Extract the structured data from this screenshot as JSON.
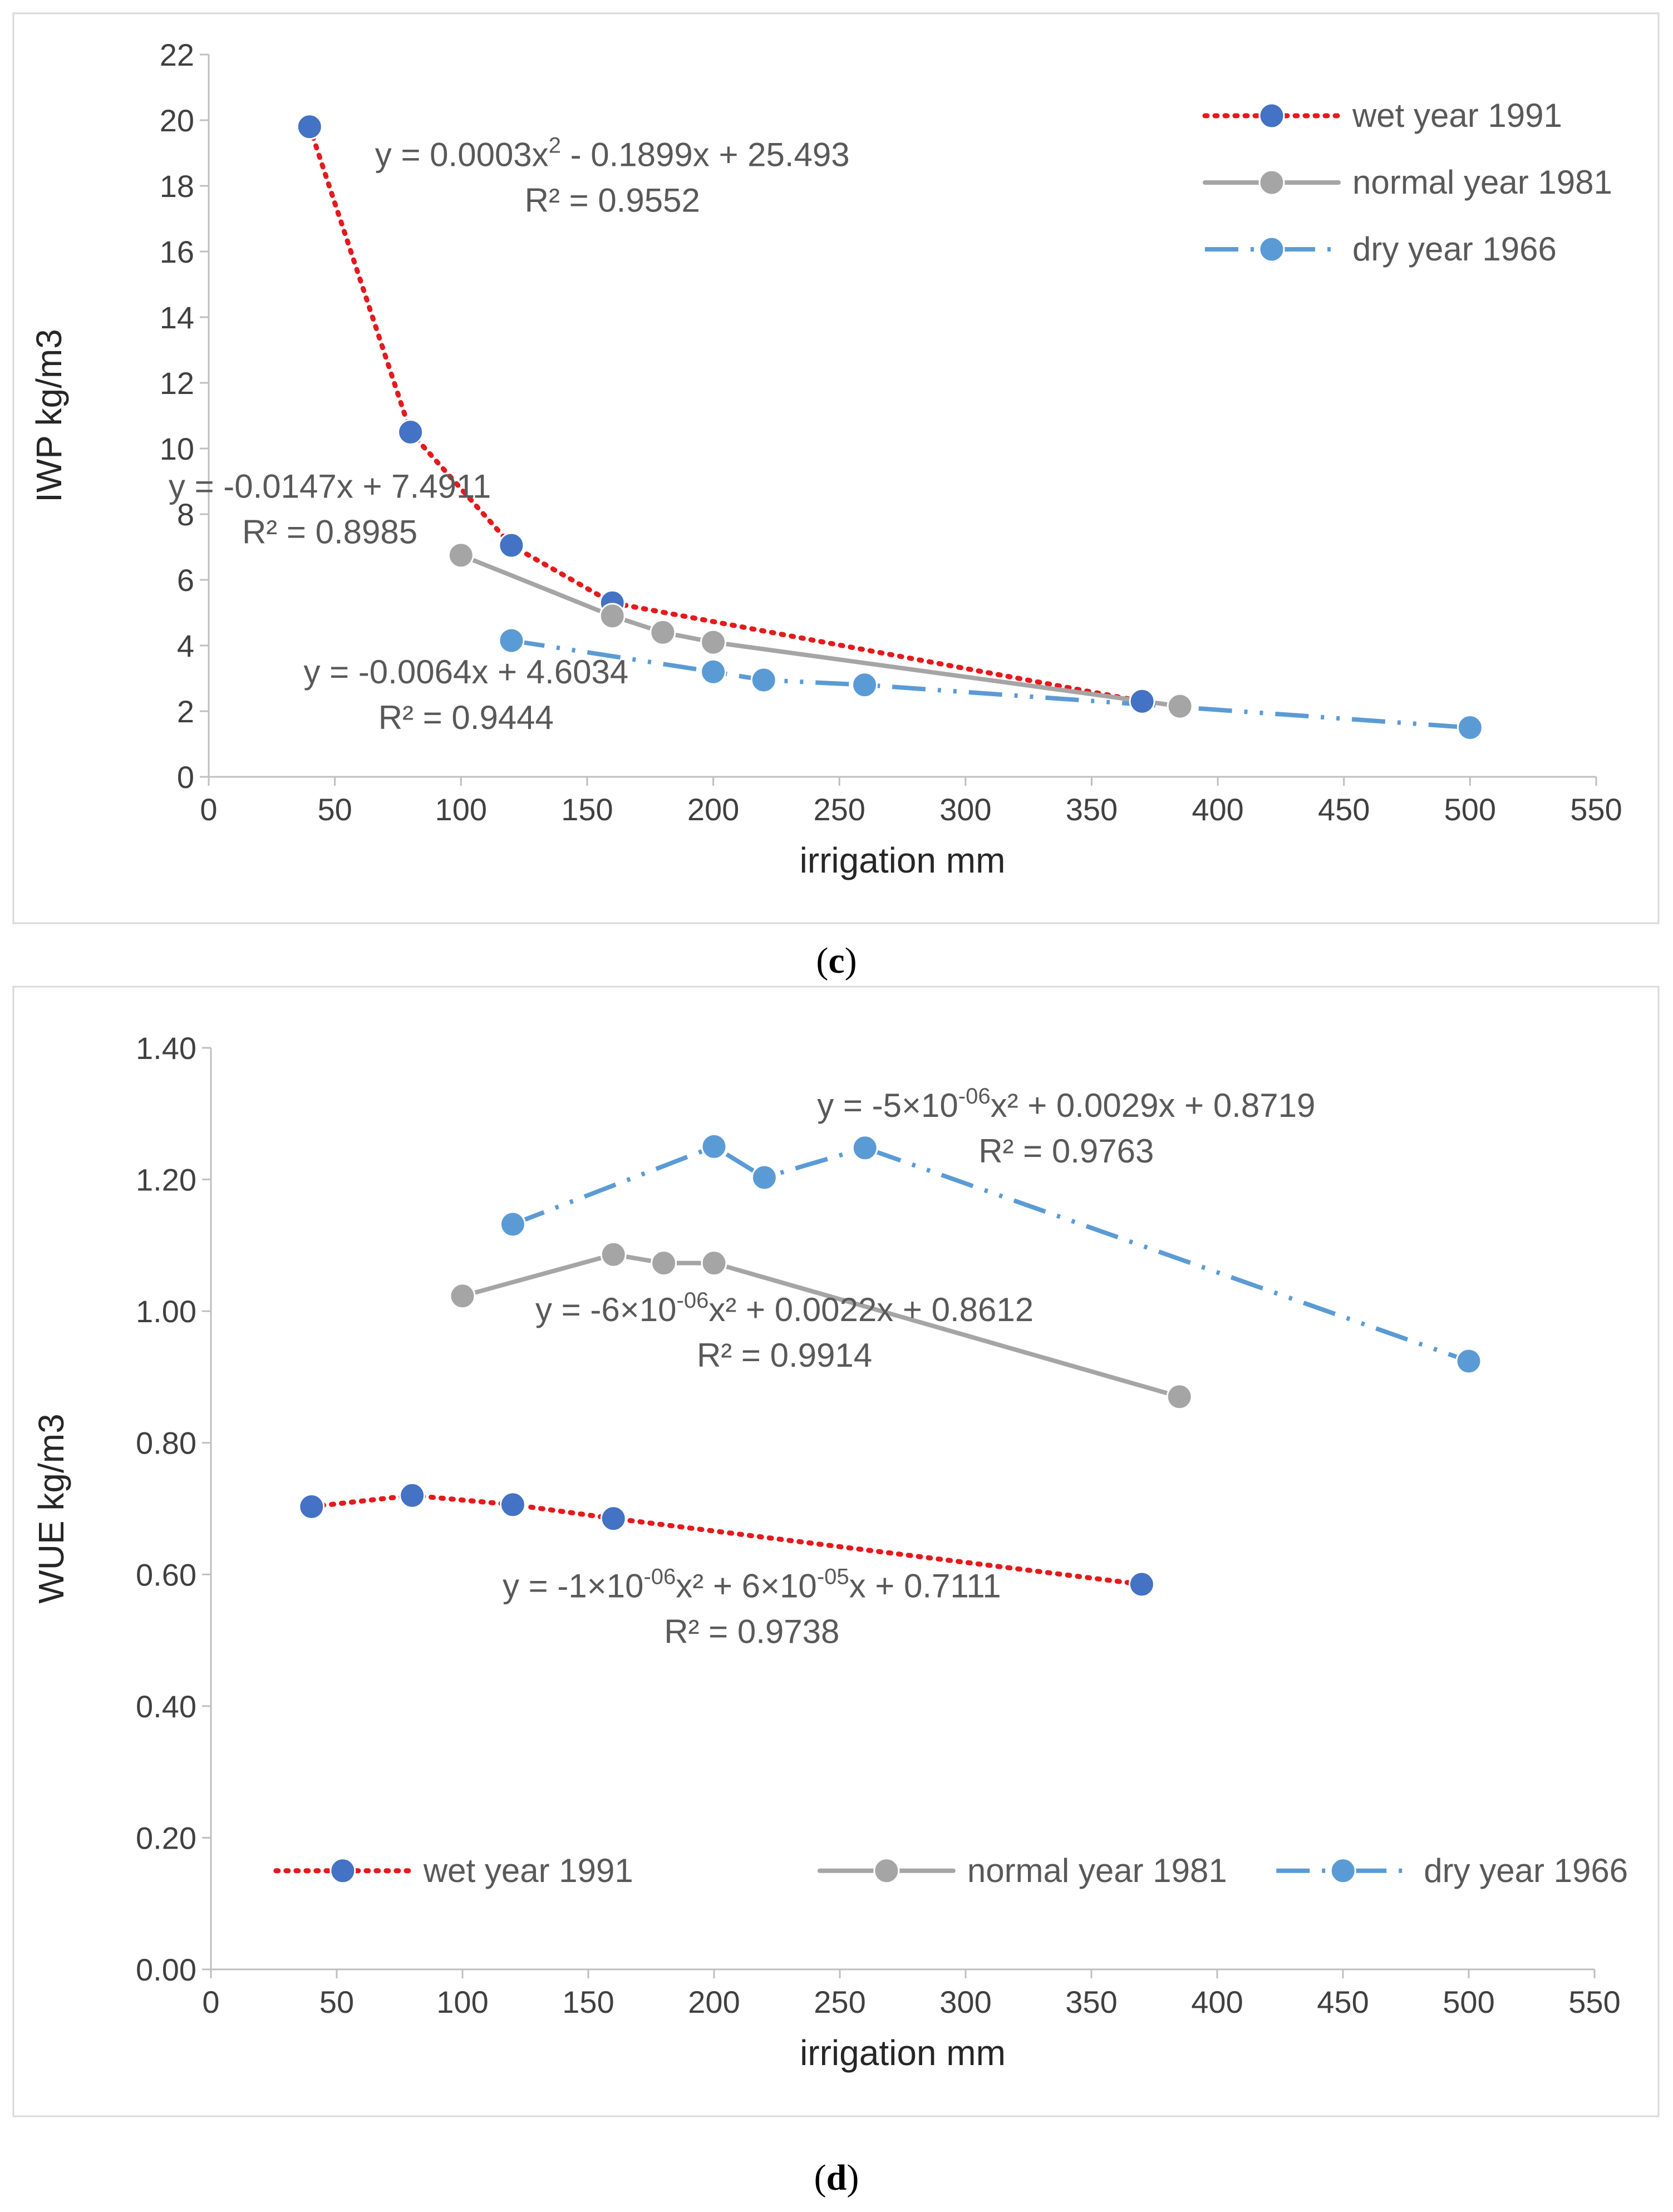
{
  "chart_data": [
    {
      "type": "line",
      "panel_label": "c",
      "xlabel": "irrigation mm",
      "ylabel": "IWP  kg/m3",
      "xlim": [
        0,
        550
      ],
      "ylim": [
        0,
        22
      ],
      "xticks": [
        0,
        50,
        100,
        150,
        200,
        250,
        300,
        350,
        400,
        450,
        500,
        550
      ],
      "yticks": [
        0,
        2,
        4,
        6,
        8,
        10,
        12,
        14,
        16,
        18,
        20,
        22
      ],
      "ytick_labels": [
        "0",
        "2",
        "4",
        "6",
        "8",
        "10",
        "12",
        "14",
        "16",
        "18",
        "20",
        "22"
      ],
      "legend_position": "top-right",
      "series": [
        {
          "name": "wet year 1991",
          "color": "#e41a1c",
          "marker_color": "#4472c4",
          "style": "dotted",
          "x": [
            40,
            80,
            120,
            160,
            370
          ],
          "y": [
            19.8,
            10.5,
            7.05,
            5.3,
            2.3
          ]
        },
        {
          "name": "normal year 1981",
          "color": "#a5a5a5",
          "marker_color": "#a5a5a5",
          "style": "solid",
          "x": [
            100,
            160,
            180,
            200,
            385
          ],
          "y": [
            6.75,
            4.9,
            4.4,
            4.1,
            2.15
          ]
        },
        {
          "name": "dry year 1966",
          "color": "#5b9bd5",
          "marker_color": "#5b9bd5",
          "style": "dashdot",
          "x": [
            120,
            200,
            220,
            260,
            500
          ],
          "y": [
            4.15,
            3.2,
            2.95,
            2.8,
            1.5
          ]
        }
      ],
      "annotations": [
        {
          "series": "wet year 1991",
          "eq_pre": "y = 0.0003x",
          "eq_sup": "2",
          "eq_post": " - 0.1899x + 25.493",
          "r2": "R² = 0.9552",
          "at_x": 160,
          "at_y": 18.6
        },
        {
          "series": "normal year 1981",
          "eq_pre": "y = -0.0147x + 7.4911",
          "eq_sup": "",
          "eq_post": "",
          "r2": "R² = 0.8985",
          "at_x": 48,
          "at_y": 8.5
        },
        {
          "series": "dry year 1966",
          "eq_pre": "y = -0.0064x + 4.6034",
          "eq_sup": "",
          "eq_post": "",
          "r2": "R² = 0.9444",
          "at_x": 102,
          "at_y": 2.85
        }
      ]
    },
    {
      "type": "line",
      "panel_label": "d",
      "xlabel": "irrigation mm",
      "ylabel": "WUE  kg/m3",
      "xlim": [
        0,
        550
      ],
      "ylim": [
        0,
        1.4
      ],
      "xticks": [
        0,
        50,
        100,
        150,
        200,
        250,
        300,
        350,
        400,
        450,
        500,
        550
      ],
      "yticks": [
        0,
        0.2,
        0.4,
        0.6,
        0.8,
        1.0,
        1.2,
        1.4
      ],
      "ytick_labels": [
        "0.00",
        "0.20",
        "0.40",
        "0.60",
        "0.80",
        "1.00",
        "1.20",
        "1.40"
      ],
      "legend_position": "bottom",
      "series": [
        {
          "name": "wet year 1991",
          "color": "#e41a1c",
          "marker_color": "#4472c4",
          "style": "dotted",
          "x": [
            40,
            80,
            120,
            160,
            370
          ],
          "y": [
            0.703,
            0.72,
            0.706,
            0.685,
            0.585
          ]
        },
        {
          "name": "normal year 1981",
          "color": "#a5a5a5",
          "marker_color": "#a5a5a5",
          "style": "solid",
          "x": [
            100,
            160,
            180,
            200,
            385
          ],
          "y": [
            1.023,
            1.086,
            1.073,
            1.073,
            0.87
          ]
        },
        {
          "name": "dry year 1966",
          "color": "#5b9bd5",
          "marker_color": "#5b9bd5",
          "style": "dashdot",
          "x": [
            120,
            200,
            220,
            260,
            500
          ],
          "y": [
            1.132,
            1.25,
            1.203,
            1.248,
            0.924
          ]
        }
      ],
      "annotations": [
        {
          "series": "dry year 1966",
          "eq_pre": "y = -5×10",
          "eq_sup": "-06",
          "eq_post": "x² + 0.0029x + 0.8719",
          "r2": "R² = 0.9763",
          "at_x": 340,
          "at_y": 1.295
        },
        {
          "series": "normal year 1981",
          "eq_pre": "y = -6×10",
          "eq_sup": "-06",
          "eq_post": "x² + 0.0022x + 0.8612",
          "r2": "R² = 0.9914",
          "at_x": 228,
          "at_y": 0.985
        },
        {
          "series": "wet year 1991",
          "eq_pre": "y = -1×10",
          "eq_sup": "-06",
          "eq_post": "x² + 6×10",
          "eq_sup2": "-05",
          "eq_post2": "x + 0.7111",
          "r2": "R² = 0.9738",
          "at_x": 215,
          "at_y": 0.565
        }
      ]
    }
  ]
}
